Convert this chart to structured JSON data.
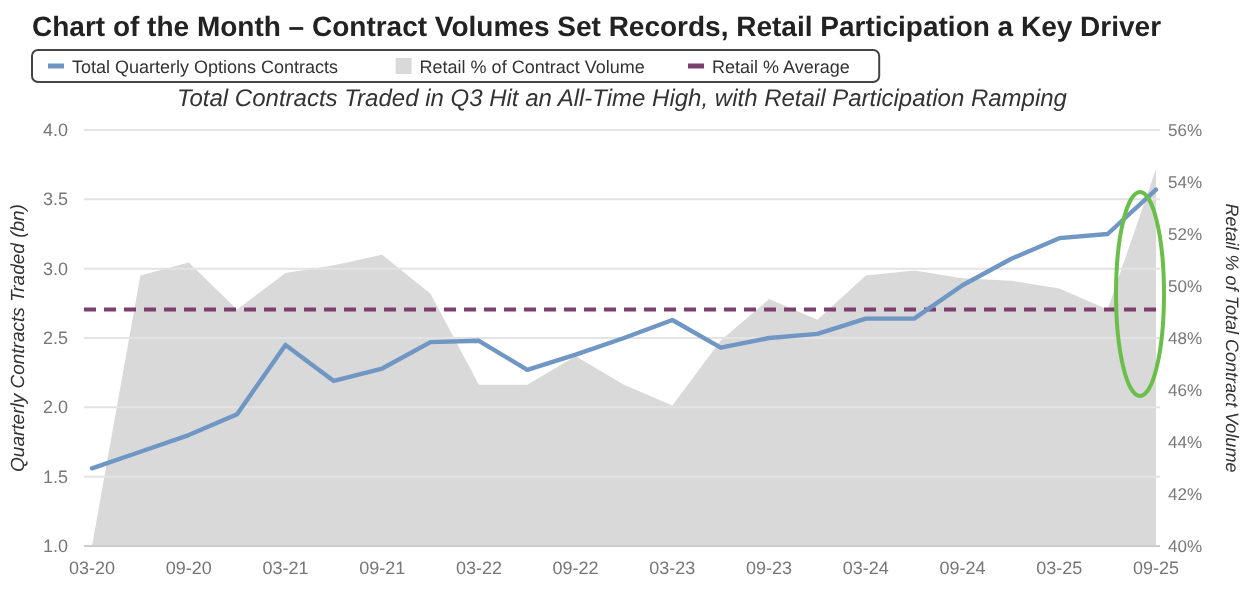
{
  "chart_data": {
    "type": "line",
    "title": "Chart of the Month – Contract Volumes Set Records, Retail Participation a Key Driver",
    "subtitle": "Total Contracts Traded in Q3 Hit an All-Time High, with Retail Participation Ramping",
    "ylabel": "Quarterly Contracts Traded (bn)",
    "y2label": "Retail % of Total Contract Volume",
    "categories": [
      "03-20",
      null,
      "09-20",
      null,
      "03-21",
      null,
      "09-21",
      null,
      "03-22",
      null,
      "09-22",
      null,
      "03-23",
      null,
      "09-23",
      null,
      "03-24",
      null,
      "09-24",
      null,
      "03-25",
      null,
      "09-25"
    ],
    "series": [
      {
        "name": "Total Quarterly Options Contracts",
        "type": "line",
        "color": "#7096c4",
        "values": [
          1.56,
          1.68,
          1.8,
          1.95,
          2.45,
          2.19,
          2.28,
          2.47,
          2.48,
          2.27,
          2.38,
          2.5,
          2.63,
          2.43,
          2.5,
          2.53,
          2.64,
          2.64,
          2.88,
          3.07,
          3.22,
          3.25,
          3.57
        ]
      },
      {
        "name": "Retail % of Contract Volume",
        "type": "area",
        "axis": "y2",
        "color": "#d9d9d9",
        "values": [
          40,
          50.4,
          50.9,
          49.1,
          50.5,
          50.8,
          51.2,
          49.7,
          46.2,
          46.2,
          47.3,
          46.2,
          45.4,
          47.9,
          49.5,
          48.7,
          50.4,
          50.6,
          50.3,
          50.2,
          49.9,
          49.1,
          54.5
        ]
      }
    ],
    "ref_lines": [
      {
        "axis": "y2",
        "value": 49.1,
        "label": "Retail % Average",
        "color": "#7b3f6e",
        "line_style": "dashed"
      }
    ],
    "ylim": [
      1,
      4
    ],
    "yticks": [
      {
        "value": 1,
        "label": "1.0"
      },
      {
        "value": 1.5,
        "label": "1.5"
      },
      {
        "value": 2,
        "label": "2.0"
      },
      {
        "value": 2.5,
        "label": "2.5"
      },
      {
        "value": 3,
        "label": "3.0"
      },
      {
        "value": 3.5,
        "label": "3.5"
      },
      {
        "value": 4,
        "label": "4.0"
      }
    ],
    "y2lim": [
      40,
      56
    ],
    "y2ticks": [
      {
        "value": 40,
        "label": "40%"
      },
      {
        "value": 42,
        "label": "42%"
      },
      {
        "value": 44,
        "label": "44%"
      },
      {
        "value": 46,
        "label": "46%"
      },
      {
        "value": 48,
        "label": "48%"
      },
      {
        "value": 50,
        "label": "50%"
      },
      {
        "value": 52,
        "label": "52%"
      },
      {
        "value": 54,
        "label": "54%"
      },
      {
        "value": 56,
        "label": "56%"
      }
    ],
    "grid": "y",
    "legend": "top left",
    "marker": "none"
  }
}
